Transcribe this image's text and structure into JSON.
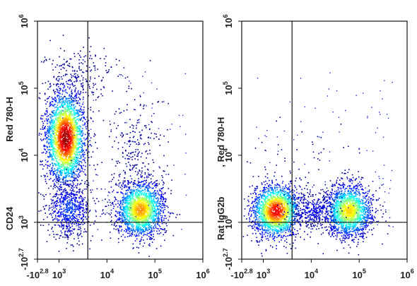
{
  "chart_data": [
    {
      "type": "scatter",
      "subtype": "flow-cytometry-density-dot-plot",
      "ylabel_parts": [
        "CD24",
        "Red 780-H"
      ],
      "y_ticks": [
        {
          "base": "-10",
          "exp": "2.7"
        },
        {
          "base": "10",
          "exp": "3"
        },
        {
          "base": "10",
          "exp": "4"
        },
        {
          "base": "10",
          "exp": "5"
        },
        {
          "base": "10",
          "exp": "6"
        }
      ],
      "x_ticks": [
        {
          "base": "-10",
          "exp": "2.8"
        },
        {
          "base": "10",
          "exp": "3"
        },
        {
          "base": "10",
          "exp": "4"
        },
        {
          "base": "10",
          "exp": "5"
        },
        {
          "base": "10",
          "exp": "6"
        }
      ],
      "x_scale": "biexponential (log10)",
      "y_scale": "biexponential (log10)",
      "quadrant_gate": {
        "x": 3.6,
        "y": 3.0
      },
      "populations": [
        {
          "x_center": 2.78,
          "y_center": 3.65,
          "peak_density": "high"
        },
        {
          "x_center": 2.8,
          "y_center": 2.55,
          "peak_density": "low"
        },
        {
          "x_center": 4.45,
          "y_center": 2.55,
          "peak_density": "high"
        }
      ]
    },
    {
      "type": "scatter",
      "subtype": "flow-cytometry-density-dot-plot",
      "ylabel_parts": [
        "Rat IgG2b",
        ", Red 780-H"
      ],
      "y_ticks": [
        {
          "base": "-10",
          "exp": "2.7"
        },
        {
          "base": "10",
          "exp": "3"
        },
        {
          "base": "10",
          "exp": "4"
        },
        {
          "base": "10",
          "exp": "5"
        },
        {
          "base": "10",
          "exp": "6"
        }
      ],
      "x_ticks": [
        {
          "base": "-10",
          "exp": "2.8"
        },
        {
          "base": "10",
          "exp": "3"
        },
        {
          "base": "10",
          "exp": "4"
        },
        {
          "base": "10",
          "exp": "5"
        },
        {
          "base": "10",
          "exp": "6"
        }
      ],
      "x_scale": "biexponential (log10)",
      "y_scale": "biexponential (log10)",
      "quadrant_gate": {
        "x": 3.6,
        "y": 3.0
      },
      "populations": [
        {
          "x_center": 2.9,
          "y_center": 2.6,
          "peak_density": "high"
        },
        {
          "x_center": 4.45,
          "y_center": 2.6,
          "peak_density": "high"
        }
      ]
    }
  ]
}
